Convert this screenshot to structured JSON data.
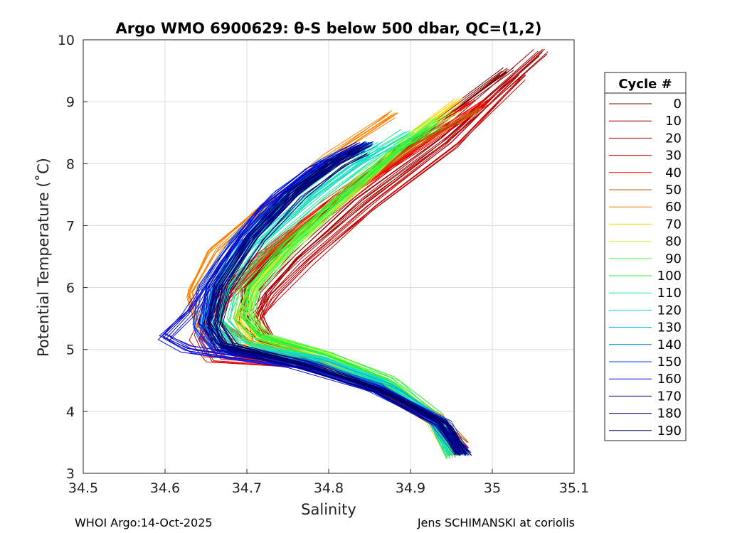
{
  "chart_data": {
    "type": "line",
    "title": "Argo WMO 6900629: θ-S below 500 dbar,  QC=(1,2)",
    "xlabel": "Salinity",
    "ylabel": "Potential Temperature (˚C)",
    "xlim": [
      34.5,
      35.1
    ],
    "ylim": [
      3,
      10
    ],
    "xticks": [
      "34.5",
      "34.6",
      "34.7",
      "34.8",
      "34.9",
      "35",
      "35.1"
    ],
    "yticks": [
      "3",
      "4",
      "5",
      "6",
      "7",
      "8",
      "9",
      "10"
    ],
    "grid": true,
    "legend": {
      "title": "Cycle #",
      "placement": "right",
      "entries": [
        "0",
        "10",
        "20",
        "30",
        "40",
        "50",
        "60",
        "70",
        "80",
        "90",
        "100",
        "110",
        "120",
        "130",
        "140",
        "150",
        "160",
        "170",
        "180",
        "190"
      ]
    },
    "series": [
      {
        "name": "0",
        "color": "#800000",
        "salinity": [
          34.965,
          34.94,
          34.88,
          34.81,
          34.74,
          34.7,
          34.7,
          34.74,
          34.82,
          34.92,
          35.02
        ],
        "theta": [
          3.4,
          3.8,
          4.3,
          4.7,
          5.0,
          5.5,
          6.0,
          6.6,
          7.5,
          8.5,
          9.5
        ]
      },
      {
        "name": "10",
        "color": "#a00000",
        "salinity": [
          34.962,
          34.935,
          34.87,
          34.8,
          34.73,
          34.71,
          34.72,
          34.76,
          34.84,
          34.94,
          35.06
        ],
        "theta": [
          3.35,
          3.8,
          4.4,
          4.75,
          5.05,
          5.5,
          5.9,
          6.5,
          7.4,
          8.4,
          9.8
        ]
      },
      {
        "name": "20",
        "color": "#c00000",
        "salinity": [
          34.96,
          34.93,
          34.86,
          34.79,
          34.72,
          34.71,
          34.73,
          34.77,
          34.85,
          34.95,
          35.03
        ],
        "theta": [
          3.4,
          3.9,
          4.45,
          4.8,
          5.1,
          5.5,
          5.85,
          6.4,
          7.3,
          8.3,
          9.4
        ]
      },
      {
        "name": "30",
        "color": "#e00000",
        "salinity": [
          34.958,
          34.93,
          34.86,
          34.78,
          34.66,
          34.64,
          34.66,
          34.72,
          34.8,
          34.9,
          34.99
        ],
        "theta": [
          3.3,
          3.85,
          4.4,
          4.75,
          4.85,
          5.2,
          5.7,
          6.5,
          7.3,
          8.2,
          9.0
        ]
      },
      {
        "name": "40",
        "color": "#ff1000",
        "salinity": [
          34.955,
          34.925,
          34.85,
          34.77,
          34.68,
          34.65,
          34.67,
          34.72,
          34.8,
          34.89,
          34.98
        ],
        "theta": [
          3.3,
          3.9,
          4.45,
          4.8,
          4.9,
          5.2,
          5.8,
          6.5,
          7.3,
          8.2,
          9.0
        ]
      },
      {
        "name": "50",
        "color": "#c06000",
        "salinity": [
          34.96,
          34.935,
          34.87,
          34.79,
          34.7,
          34.66,
          34.67,
          34.72,
          34.8,
          34.9,
          34.98
        ],
        "theta": [
          3.5,
          3.85,
          4.4,
          4.85,
          5.1,
          5.5,
          6.0,
          6.6,
          7.4,
          8.3,
          8.9
        ]
      },
      {
        "name": "60",
        "color": "#ff8000",
        "salinity": [
          34.955,
          34.93,
          34.86,
          34.78,
          34.68,
          34.64,
          34.63,
          34.66,
          34.72,
          34.8,
          34.88
        ],
        "theta": [
          3.4,
          3.9,
          4.45,
          4.85,
          5.05,
          5.4,
          5.9,
          6.6,
          7.3,
          8.1,
          8.8
        ]
      },
      {
        "name": "70",
        "color": "#ffd000",
        "salinity": [
          34.95,
          34.93,
          34.86,
          34.78,
          34.71,
          34.69,
          34.71,
          34.76,
          34.84,
          34.91,
          34.96
        ],
        "theta": [
          3.3,
          3.85,
          4.4,
          4.85,
          5.1,
          5.5,
          6.0,
          6.7,
          7.6,
          8.5,
          9.0
        ]
      },
      {
        "name": "80",
        "color": "#c0ff40",
        "salinity": [
          34.955,
          34.935,
          34.875,
          34.8,
          34.72,
          34.7,
          34.71,
          34.76,
          34.83,
          34.9,
          34.95
        ],
        "theta": [
          3.3,
          3.85,
          4.4,
          4.9,
          5.2,
          5.6,
          6.0,
          6.7,
          7.6,
          8.4,
          8.8
        ]
      },
      {
        "name": "90",
        "color": "#60ff60",
        "salinity": [
          34.95,
          34.93,
          34.88,
          34.8,
          34.72,
          34.7,
          34.71,
          34.75,
          34.82,
          34.89,
          34.93
        ],
        "theta": [
          3.3,
          3.85,
          4.45,
          4.9,
          5.2,
          5.5,
          5.95,
          6.6,
          7.5,
          8.3,
          8.7
        ]
      },
      {
        "name": "100",
        "color": "#30ee30",
        "salinity": [
          34.95,
          34.93,
          34.87,
          34.79,
          34.71,
          34.69,
          34.7,
          34.75,
          34.82,
          34.88,
          34.93
        ],
        "theta": [
          3.25,
          3.9,
          4.5,
          4.9,
          5.2,
          5.5,
          6.0,
          6.7,
          7.5,
          8.2,
          8.6
        ]
      },
      {
        "name": "110",
        "color": "#20e8a0",
        "salinity": [
          34.955,
          34.935,
          34.87,
          34.79,
          34.7,
          34.67,
          34.68,
          34.72,
          34.79,
          34.86,
          34.9
        ],
        "theta": [
          3.3,
          3.85,
          4.45,
          4.85,
          5.1,
          5.5,
          6.0,
          6.7,
          7.5,
          8.2,
          8.5
        ]
      },
      {
        "name": "120",
        "color": "#10d8d0",
        "salinity": [
          34.955,
          34.93,
          34.87,
          34.79,
          34.69,
          34.66,
          34.67,
          34.71,
          34.77,
          34.83,
          34.87
        ],
        "theta": [
          3.3,
          3.85,
          4.45,
          4.85,
          5.0,
          5.4,
          6.0,
          6.7,
          7.4,
          8.0,
          8.3
        ]
      },
      {
        "name": "130",
        "color": "#00b0e0",
        "salinity": [
          34.96,
          34.935,
          34.87,
          34.78,
          34.68,
          34.65,
          34.66,
          34.7,
          34.75,
          34.8,
          34.85
        ],
        "theta": [
          3.3,
          3.85,
          4.4,
          4.8,
          5.0,
          5.4,
          6.0,
          6.8,
          7.5,
          8.0,
          8.3
        ]
      },
      {
        "name": "140",
        "color": "#0070c0",
        "salinity": [
          34.96,
          34.93,
          34.86,
          34.77,
          34.67,
          34.65,
          34.66,
          34.7,
          34.75,
          34.8,
          34.85
        ],
        "theta": [
          3.3,
          3.85,
          4.4,
          4.8,
          5.0,
          5.4,
          6.0,
          6.8,
          7.5,
          8.0,
          8.3
        ]
      },
      {
        "name": "150",
        "color": "#0040ff",
        "salinity": [
          34.965,
          34.94,
          34.86,
          34.77,
          34.66,
          34.64,
          34.65,
          34.69,
          34.74,
          34.79,
          34.84
        ],
        "theta": [
          3.3,
          3.8,
          4.35,
          4.75,
          4.95,
          5.35,
          6.0,
          6.8,
          7.5,
          8.0,
          8.3
        ]
      },
      {
        "name": "160",
        "color": "#1010d0",
        "salinity": [
          34.965,
          34.94,
          34.86,
          34.76,
          34.63,
          34.6,
          34.63,
          34.67,
          34.72,
          34.78,
          34.83
        ],
        "theta": [
          3.35,
          3.8,
          4.35,
          4.75,
          5.0,
          5.2,
          5.6,
          6.4,
          7.3,
          7.9,
          8.2
        ]
      },
      {
        "name": "170",
        "color": "#0000a0",
        "salinity": [
          34.965,
          34.94,
          34.86,
          34.76,
          34.67,
          34.65,
          34.66,
          34.7,
          34.75,
          34.8,
          34.84
        ],
        "theta": [
          3.3,
          3.8,
          4.35,
          4.75,
          5.0,
          5.4,
          6.0,
          6.8,
          7.5,
          8.0,
          8.3
        ]
      },
      {
        "name": "180",
        "color": "#000080",
        "salinity": [
          34.965,
          34.94,
          34.86,
          34.77,
          34.67,
          34.66,
          34.67,
          34.71,
          34.76,
          34.81,
          34.85
        ],
        "theta": [
          3.3,
          3.8,
          4.35,
          4.75,
          5.05,
          5.4,
          6.0,
          6.8,
          7.5,
          8.0,
          8.3
        ]
      },
      {
        "name": "190",
        "color": "#000060",
        "salinity": [
          34.962,
          34.94,
          34.86,
          34.77,
          34.68,
          34.66,
          34.67,
          34.71,
          34.76,
          34.81,
          34.84
        ],
        "theta": [
          3.3,
          3.8,
          4.35,
          4.75,
          5.05,
          5.45,
          6.0,
          6.8,
          7.5,
          8.0,
          8.2
        ]
      }
    ]
  },
  "footer": {
    "left": "WHOI Argo:14-Oct-2025",
    "right": "Jens SCHIMANSKI at coriolis"
  }
}
